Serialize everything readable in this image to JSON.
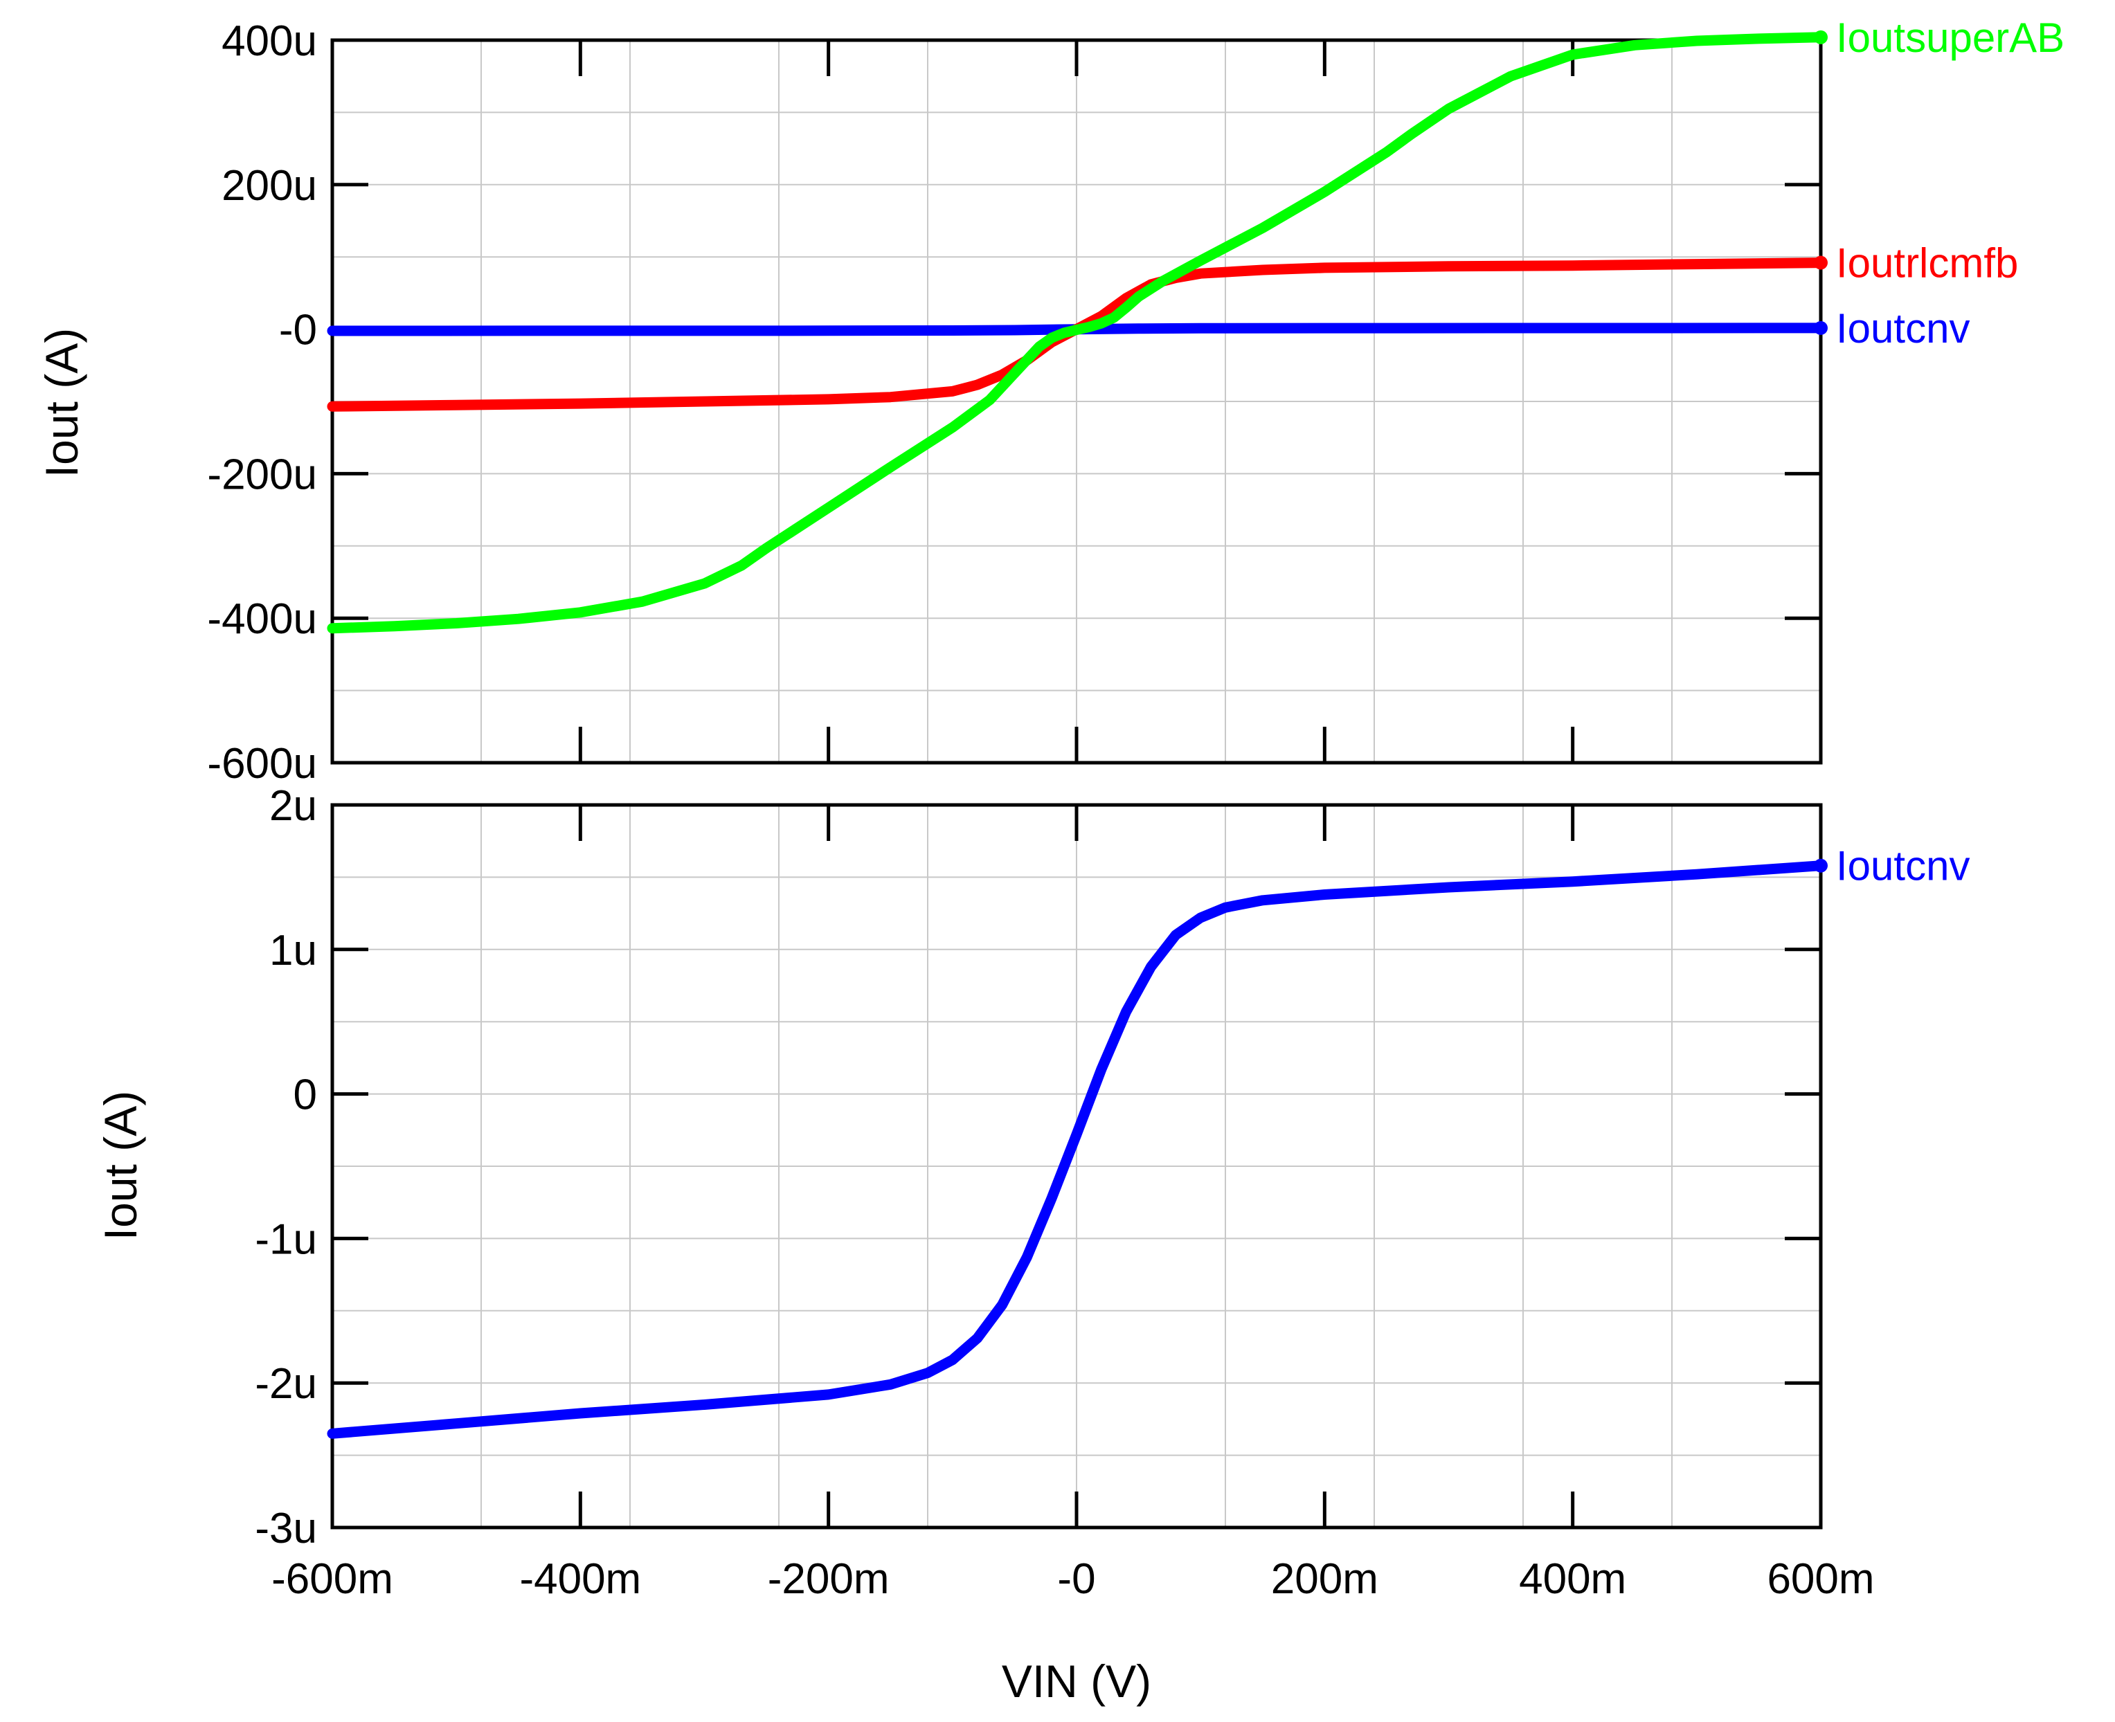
{
  "chart_data": [
    {
      "type": "line",
      "panel": "top",
      "xlabel": "",
      "ylabel": "Iout (A)",
      "x_tick_labels": [],
      "y_tick_labels": [
        "400u",
        "200u",
        "-0",
        "-200u",
        "-400u",
        "-600u"
      ],
      "y_tick_values": [
        0.0004,
        0.0002,
        0,
        -0.0002,
        -0.0004,
        -0.0006
      ],
      "xlim": [
        -0.6,
        0.6
      ],
      "ylim": [
        -0.0006,
        0.0004
      ],
      "grid": true,
      "legend": "labels at right end of each trace",
      "series": [
        {
          "name": "Ioutcnv",
          "color": "#0000ff",
          "x": [
            -0.6,
            -0.4,
            -0.2,
            -0.1,
            -0.05,
            0,
            0.05,
            0.1,
            0.2,
            0.4,
            0.6
          ],
          "y": [
            -2.3e-06,
            -2.2e-06,
            -2.1e-06,
            -1.8e-06,
            -1.3e-06,
            -1e-07,
            8e-07,
            1.2e-06,
            1.4e-06,
            1.5e-06,
            1.6e-06
          ]
        },
        {
          "name": "Ioutrlcmfb",
          "color": "#ff0000",
          "x": [
            -0.6,
            -0.5,
            -0.4,
            -0.3,
            -0.2,
            -0.15,
            -0.1,
            -0.08,
            -0.06,
            -0.04,
            -0.02,
            0,
            0.02,
            0.04,
            0.06,
            0.08,
            0.1,
            0.15,
            0.2,
            0.3,
            0.4,
            0.5,
            0.6
          ],
          "y": [
            -0.000107,
            -0.000105,
            -0.000103,
            -0.0001,
            -9.7e-05,
            -9.4e-05,
            -8.6e-05,
            -7.7e-05,
            -6.3e-05,
            -4.3e-05,
            -1.8e-05,
            0,
            1.8e-05,
            4.3e-05,
            6.2e-05,
            7.1e-05,
            7.7e-05,
            8.2e-05,
            8.5e-05,
            8.7e-05,
            8.8e-05,
            9e-05,
            9.2e-05
          ]
        },
        {
          "name": "IoutsuperAB",
          "color": "#00ff00",
          "x": [
            -0.6,
            -0.55,
            -0.5,
            -0.45,
            -0.4,
            -0.35,
            -0.3,
            -0.27,
            -0.25,
            -0.2,
            -0.15,
            -0.1,
            -0.07,
            -0.05,
            -0.03,
            -0.02,
            -0.01,
            0,
            0.01,
            0.02,
            0.03,
            0.04,
            0.05,
            0.07,
            0.1,
            0.15,
            0.2,
            0.25,
            0.27,
            0.3,
            0.35,
            0.4,
            0.45,
            0.5,
            0.55,
            0.6
          ],
          "y": [
            -0.000414,
            -0.000411,
            -0.000407,
            -0.000401,
            -0.000392,
            -0.000377,
            -0.000352,
            -0.000327,
            -0.000303,
            -0.000247,
            -0.000191,
            -0.000136,
            -9.8e-05,
            -6.1e-05,
            -2.4e-05,
            -1.2e-05,
            -5e-06,
            -1e-06,
            3e-06,
            8e-06,
            1.6e-05,
            3e-05,
            4.5e-05,
            6.7e-05,
            9.5e-05,
            0.00014,
            0.00019,
            0.000245,
            0.00027,
            0.000305,
            0.00035,
            0.00038,
            0.000393,
            0.000399,
            0.000402,
            0.000404
          ]
        }
      ]
    },
    {
      "type": "line",
      "panel": "bottom",
      "xlabel": "VIN (V)",
      "ylabel": "Iout (A)",
      "x_tick_labels": [
        "-600m",
        "-400m",
        "-200m",
        "-0",
        "200m",
        "400m",
        "600m"
      ],
      "x_tick_values": [
        -0.6,
        -0.4,
        -0.2,
        0,
        0.2,
        0.4,
        0.6
      ],
      "y_tick_labels": [
        "2u",
        "1u",
        "0",
        "-1u",
        "-2u",
        "-3u"
      ],
      "y_tick_values": [
        2e-06,
        1e-06,
        0,
        -1e-06,
        -2e-06,
        -3e-06
      ],
      "xlim": [
        -0.6,
        0.6
      ],
      "ylim": [
        -3e-06,
        2e-06
      ],
      "grid": true,
      "legend": "label at right end of trace",
      "series": [
        {
          "name": "Ioutcnv",
          "color": "#0000ff",
          "x": [
            -0.6,
            -0.5,
            -0.4,
            -0.3,
            -0.2,
            -0.15,
            -0.12,
            -0.1,
            -0.08,
            -0.06,
            -0.04,
            -0.02,
            0,
            0.02,
            0.04,
            0.06,
            0.08,
            0.1,
            0.12,
            0.15,
            0.2,
            0.3,
            0.4,
            0.5,
            0.6
          ],
          "y": [
            -2.35e-06,
            -2.28e-06,
            -2.21e-06,
            -2.15e-06,
            -2.08e-06,
            -2.01e-06,
            -1.93e-06,
            -1.84e-06,
            -1.69e-06,
            -1.46e-06,
            -1.13e-06,
            -7.2e-07,
            -2.8e-07,
            1.7e-07,
            5.7e-07,
            8.8e-07,
            1.1e-06,
            1.22e-06,
            1.29e-06,
            1.34e-06,
            1.38e-06,
            1.43e-06,
            1.47e-06,
            1.52e-06,
            1.58e-06
          ]
        }
      ]
    }
  ]
}
